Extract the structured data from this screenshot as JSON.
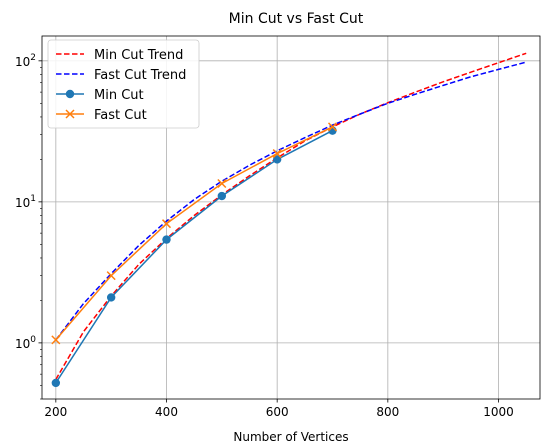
{
  "chart_data": {
    "type": "line",
    "title": "Min Cut vs Fast Cut",
    "xlabel": "Number of Vertices",
    "ylabel": "",
    "xlim": [
      175,
      1075
    ],
    "ylim": [
      0.4,
      150
    ],
    "yscale": "log",
    "grid": true,
    "legend_position": "top-left",
    "x_ticks": [
      200,
      400,
      600,
      800,
      1000
    ],
    "y_ticks": [
      {
        "value": 1,
        "base": "10",
        "exp": "0"
      },
      {
        "value": 10,
        "base": "10",
        "exp": "1"
      },
      {
        "value": 100,
        "base": "10",
        "exp": "2"
      }
    ],
    "series": [
      {
        "name": "Min Cut Trend",
        "style": "dashed",
        "color": "#ff0000",
        "x": [
          200,
          250,
          300,
          350,
          400,
          450,
          500,
          550,
          600,
          650,
          700,
          750,
          800,
          850,
          900,
          950,
          1000,
          1050
        ],
        "y": [
          0.55,
          1.2,
          2.15,
          3.6,
          5.5,
          8.0,
          11.2,
          15.3,
          20.5,
          27.0,
          34.0,
          42.0,
          50.5,
          60.0,
          71.0,
          83.0,
          97.0,
          113.0
        ]
      },
      {
        "name": "Fast Cut Trend",
        "style": "dashed",
        "color": "#0000ff",
        "x": [
          200,
          250,
          300,
          350,
          400,
          450,
          500,
          550,
          600,
          650,
          700,
          750,
          800,
          850,
          900,
          950,
          1000,
          1050
        ],
        "y": [
          1.05,
          1.9,
          3.1,
          4.9,
          7.3,
          10.4,
          14.0,
          18.2,
          23.0,
          28.5,
          35.0,
          42.0,
          50.0,
          58.0,
          67.0,
          77.0,
          87.0,
          98.0
        ]
      },
      {
        "name": "Min Cut",
        "style": "solid",
        "marker": "circle",
        "color": "#1f77b4",
        "x": [
          200,
          300,
          400,
          500,
          600,
          700
        ],
        "y": [
          0.52,
          2.1,
          5.4,
          11.0,
          20.0,
          32.0
        ]
      },
      {
        "name": "Fast Cut",
        "style": "solid",
        "marker": "x",
        "color": "#ff7f0e",
        "x": [
          200,
          300,
          400,
          500,
          600,
          700
        ],
        "y": [
          1.05,
          3.0,
          7.0,
          13.5,
          22.0,
          34.0
        ]
      }
    ]
  }
}
